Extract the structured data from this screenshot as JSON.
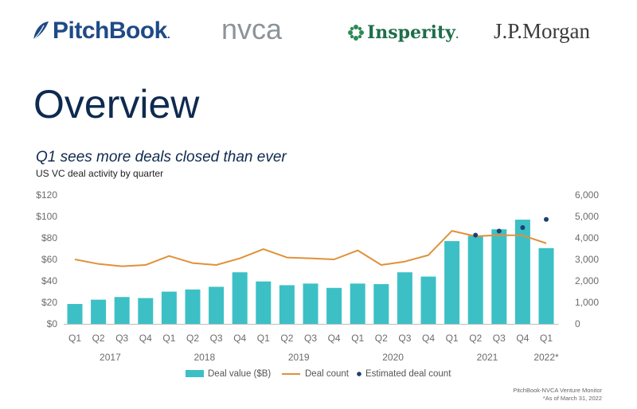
{
  "logos": {
    "pitchbook": "PitchBook",
    "pitchbook_dot": ".",
    "nvca": "nvca",
    "insperity": "Insperity",
    "insperity_dot": ".",
    "jpmorgan": "J.P.Morgan"
  },
  "page": {
    "title": "Overview",
    "subtitle": "Q1 sees more deals closed than ever",
    "description": "US VC deal activity by quarter",
    "source_line1": "PitchBook-NVCA Venture Monitor",
    "source_line2": "*As of March 31, 2022"
  },
  "colors": {
    "bar": "#3cc0c6",
    "line": "#e0913a",
    "dot": "#1f3f6e"
  },
  "chart_data": {
    "type": "bar",
    "categories": [
      "Q1",
      "Q2",
      "Q3",
      "Q4",
      "Q1",
      "Q2",
      "Q3",
      "Q4",
      "Q1",
      "Q2",
      "Q3",
      "Q4",
      "Q1",
      "Q2",
      "Q3",
      "Q4",
      "Q1",
      "Q2",
      "Q3",
      "Q4",
      "Q1"
    ],
    "year_labels": [
      "2017",
      "2018",
      "2019",
      "2020",
      "2021",
      "2022*"
    ],
    "year_group_sizes": [
      4,
      4,
      4,
      4,
      4,
      1
    ],
    "series": [
      {
        "name": "Deal value ($B)",
        "kind": "bar",
        "axis": "left",
        "values": [
          18.5,
          22.5,
          25,
          24,
          30,
          32,
          34.5,
          48,
          39.5,
          36,
          37.5,
          33.5,
          37.5,
          37,
          48,
          44,
          77,
          82,
          88,
          97,
          70.5
        ]
      },
      {
        "name": "Deal count",
        "kind": "line",
        "axis": "right",
        "values": [
          3000,
          2790,
          2680,
          2740,
          3160,
          2830,
          2740,
          3050,
          3480,
          3090,
          3050,
          3000,
          3420,
          2740,
          2900,
          3200,
          4330,
          4080,
          4130,
          4120,
          3750
        ]
      },
      {
        "name": "Estimated deal count",
        "kind": "scatter",
        "axis": "right",
        "points": [
          [
            17,
            4130
          ],
          [
            18,
            4320
          ],
          [
            19,
            4480
          ],
          [
            20,
            4860
          ]
        ]
      }
    ],
    "y_left": {
      "min": 0,
      "max": 120,
      "ticks": [
        "$0",
        "$20",
        "$40",
        "$60",
        "$80",
        "$100",
        "$120"
      ]
    },
    "y_right": {
      "min": 0,
      "max": 6000,
      "ticks": [
        "0",
        "1,000",
        "2,000",
        "3,000",
        "4,000",
        "5,000",
        "6,000"
      ]
    },
    "grid": false,
    "legend_position": "bottom"
  }
}
